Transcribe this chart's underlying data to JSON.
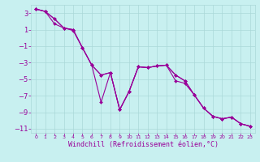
{
  "xlabel": "Windchill (Refroidissement éolien,°C)",
  "background_color": "#c8f0f0",
  "line_color": "#990099",
  "xlim": [
    -0.5,
    23.5
  ],
  "ylim": [
    -11.5,
    4.0
  ],
  "yticks": [
    3,
    1,
    -1,
    -3,
    -5,
    -7,
    -9,
    -11
  ],
  "xticks": [
    0,
    1,
    2,
    3,
    4,
    5,
    6,
    7,
    8,
    9,
    10,
    11,
    12,
    13,
    14,
    15,
    16,
    17,
    18,
    19,
    20,
    21,
    22,
    23
  ],
  "line1_x": [
    0,
    1,
    2,
    3,
    4,
    5,
    6,
    7,
    8,
    9,
    10,
    11,
    12,
    13,
    14,
    15,
    16,
    17,
    18,
    19,
    20,
    21,
    22,
    23
  ],
  "line1_y": [
    3.5,
    3.2,
    2.3,
    1.2,
    1.0,
    -1.2,
    -3.3,
    -7.8,
    -4.2,
    -8.7,
    -6.5,
    -3.5,
    -3.6,
    -3.4,
    -3.3,
    -4.5,
    -5.2,
    -6.9,
    -8.5,
    -9.5,
    -9.8,
    -9.6,
    -10.4,
    -10.7
  ],
  "line2_x": [
    0,
    1,
    2,
    3,
    4,
    5,
    6,
    7,
    8,
    9,
    10,
    11,
    12,
    13,
    14,
    15,
    16,
    17,
    18,
    19,
    20,
    21,
    22,
    23
  ],
  "line2_y": [
    3.5,
    3.2,
    2.3,
    1.2,
    1.0,
    -1.2,
    -3.3,
    -4.5,
    -4.2,
    -8.7,
    -6.5,
    -3.5,
    -3.6,
    -3.4,
    -3.3,
    -4.5,
    -5.2,
    -6.9,
    -8.5,
    -9.5,
    -9.8,
    -9.6,
    -10.4,
    -10.7
  ],
  "line3_x": [
    0,
    1,
    2,
    3,
    4,
    5,
    6,
    7,
    8,
    9,
    10,
    11,
    12,
    13,
    14,
    15,
    16,
    17,
    18,
    19,
    20,
    21,
    22,
    23
  ],
  "line3_y": [
    3.5,
    3.2,
    1.7,
    1.2,
    0.9,
    -1.2,
    -3.3,
    -4.5,
    -4.2,
    -8.7,
    -6.5,
    -3.5,
    -3.6,
    -3.4,
    -3.3,
    -5.2,
    -5.5,
    -6.9,
    -8.5,
    -9.5,
    -9.8,
    -9.6,
    -10.4,
    -10.7
  ],
  "grid_color": "#aad8d8",
  "font_color": "#990099",
  "font_size": 6,
  "marker": "D",
  "marker_size": 2,
  "line_width": 0.8
}
